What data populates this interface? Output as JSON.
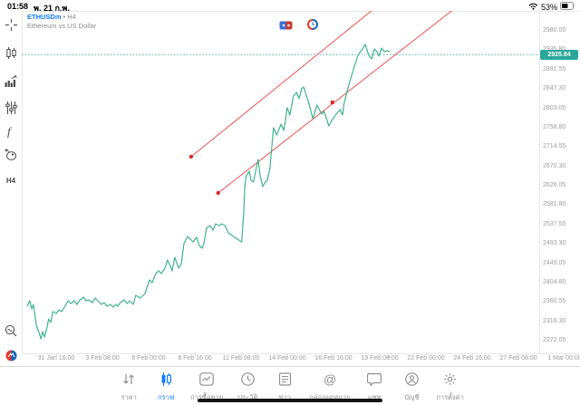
{
  "status_bar": {
    "time": "01:58",
    "date": "พ. 21 ก.พ.",
    "battery_percent": "53%"
  },
  "header": {
    "symbol": "ETHUSDm",
    "timeframe_suffix": " • H4",
    "description": "Ethereum vs US Dollar"
  },
  "sidebar": {
    "timeframe": "H4",
    "icons": [
      "crosshair-icon",
      "candles-icon",
      "indicators-icon",
      "sliders-icon",
      "function-icon",
      "shapes-icon",
      "timeframe-button",
      "zoom-chart-icon",
      "metatrader-logo-icon"
    ]
  },
  "top_icons": [
    "price-flag-icon",
    "session-clock-icon"
  ],
  "colors": {
    "series_line": "#3fb389",
    "trend_red": "#e85050",
    "badge_teal": "#2aa79b",
    "symbol_blue": "#0a7aff",
    "nav_active_blue": "#0a7aff",
    "nav_gray": "#8e8e93",
    "axis_text": "#9b9b9b"
  },
  "chart_data": {
    "type": "line",
    "title": "Ethereum vs US Dollar",
    "symbol": "ETHUSDm",
    "timeframe": "H4",
    "legend": [],
    "grid": false,
    "y_range": [
      2272.05,
      2980.05
    ],
    "y_ticks": [
      "2980.05",
      "2935.80",
      "2891.55",
      "2847.30",
      "2803.05",
      "2758.80",
      "2714.55",
      "2670.30",
      "2626.05",
      "2581.80",
      "2537.55",
      "2493.30",
      "2449.05",
      "2404.80",
      "2360.55",
      "2316.30",
      "2272.05"
    ],
    "x_ticks": [
      "31 Jan 16:00",
      "3 Feb 08:00",
      "6 Feb 00:00",
      "8 Feb 16:00",
      "11 Feb 08:00",
      "14 Feb 00:00",
      "16 Feb 16:00",
      "19 Feb 08:00",
      "22 Feb 00:00",
      "24 Feb 16:00",
      "27 Feb 08:00",
      "1 Mar 00:00"
    ],
    "current_price": 2925.84,
    "current_price_label": "2925.84",
    "series": [
      {
        "name": "ETHUSDm close",
        "color": "#3fb389",
        "points": [
          [
            0.0,
            2350.8
          ],
          [
            0.005,
            2363.2
          ],
          [
            0.009,
            2344.6
          ],
          [
            0.012,
            2354.9
          ],
          [
            0.018,
            2307.3
          ],
          [
            0.027,
            2276.3
          ],
          [
            0.03,
            2292.8
          ],
          [
            0.034,
            2280.4
          ],
          [
            0.039,
            2303.2
          ],
          [
            0.042,
            2321.8
          ],
          [
            0.046,
            2313.5
          ],
          [
            0.05,
            2338.4
          ],
          [
            0.057,
            2334.2
          ],
          [
            0.062,
            2342.5
          ],
          [
            0.067,
            2338.4
          ],
          [
            0.074,
            2350.8
          ],
          [
            0.08,
            2363.2
          ],
          [
            0.085,
            2357.0
          ],
          [
            0.092,
            2363.2
          ],
          [
            0.097,
            2354.9
          ],
          [
            0.103,
            2365.3
          ],
          [
            0.11,
            2371.5
          ],
          [
            0.115,
            2363.2
          ],
          [
            0.12,
            2365.3
          ],
          [
            0.127,
            2359.1
          ],
          [
            0.133,
            2369.4
          ],
          [
            0.138,
            2363.2
          ],
          [
            0.145,
            2354.9
          ],
          [
            0.15,
            2359.1
          ],
          [
            0.156,
            2350.8
          ],
          [
            0.163,
            2354.9
          ],
          [
            0.168,
            2348.7
          ],
          [
            0.173,
            2354.9
          ],
          [
            0.177,
            2350.8
          ],
          [
            0.182,
            2359.1
          ],
          [
            0.189,
            2365.3
          ],
          [
            0.195,
            2357.0
          ],
          [
            0.2,
            2363.2
          ],
          [
            0.207,
            2354.9
          ],
          [
            0.212,
            2375.6
          ],
          [
            0.221,
            2369.4
          ],
          [
            0.23,
            2379.8
          ],
          [
            0.239,
            2410.8
          ],
          [
            0.244,
            2404.6
          ],
          [
            0.251,
            2425.3
          ],
          [
            0.257,
            2431.5
          ],
          [
            0.262,
            2425.3
          ],
          [
            0.269,
            2437.7
          ],
          [
            0.274,
            2456.3
          ],
          [
            0.28,
            2441.9
          ],
          [
            0.283,
            2431.5
          ],
          [
            0.288,
            2462.6
          ],
          [
            0.296,
            2437.7
          ],
          [
            0.301,
            2448.0
          ],
          [
            0.306,
            2493.6
          ],
          [
            0.313,
            2510.1
          ],
          [
            0.319,
            2503.9
          ],
          [
            0.324,
            2497.7
          ],
          [
            0.331,
            2508.0
          ],
          [
            0.336,
            2489.4
          ],
          [
            0.342,
            2483.2
          ],
          [
            0.345,
            2493.6
          ],
          [
            0.35,
            2528.7
          ],
          [
            0.357,
            2534.9
          ],
          [
            0.363,
            2524.6
          ],
          [
            0.368,
            2539.1
          ],
          [
            0.375,
            2534.9
          ],
          [
            0.38,
            2539.1
          ],
          [
            0.386,
            2534.9
          ],
          [
            0.393,
            2518.4
          ],
          [
            0.398,
            2514.2
          ],
          [
            0.403,
            2510.1
          ],
          [
            0.411,
            2503.9
          ],
          [
            0.416,
            2499.7
          ],
          [
            0.419,
            2497.7
          ],
          [
            0.423,
            2566.1
          ],
          [
            0.425,
            2624.1
          ],
          [
            0.428,
            2648.9
          ],
          [
            0.434,
            2659.2
          ],
          [
            0.437,
            2638.5
          ],
          [
            0.442,
            2634.4
          ],
          [
            0.448,
            2669.6
          ],
          [
            0.451,
            2686.1
          ],
          [
            0.455,
            2648.9
          ],
          [
            0.46,
            2624.1
          ],
          [
            0.465,
            2634.4
          ],
          [
            0.469,
            2638.5
          ],
          [
            0.474,
            2665.4
          ],
          [
            0.481,
            2758.6
          ],
          [
            0.487,
            2742.0
          ],
          [
            0.496,
            2766.9
          ],
          [
            0.501,
            2752.4
          ],
          [
            0.508,
            2804.2
          ],
          [
            0.513,
            2787.6
          ],
          [
            0.52,
            2831.1
          ],
          [
            0.526,
            2839.4
          ],
          [
            0.531,
            2824.9
          ],
          [
            0.536,
            2847.7
          ],
          [
            0.54,
            2851.8
          ],
          [
            0.549,
            2818.7
          ],
          [
            0.558,
            2779.3
          ],
          [
            0.566,
            2810.4
          ],
          [
            0.575,
            2789.7
          ],
          [
            0.58,
            2795.9
          ],
          [
            0.589,
            2762.8
          ],
          [
            0.596,
            2777.3
          ],
          [
            0.602,
            2787.6
          ],
          [
            0.611,
            2800.0
          ],
          [
            0.616,
            2787.6
          ],
          [
            0.619,
            2814.5
          ],
          [
            0.628,
            2855.9
          ],
          [
            0.637,
            2891.1
          ],
          [
            0.646,
            2924.2
          ],
          [
            0.651,
            2932.5
          ],
          [
            0.655,
            2938.7
          ],
          [
            0.66,
            2949.0
          ],
          [
            0.667,
            2924.2
          ],
          [
            0.673,
            2915.9
          ],
          [
            0.678,
            2938.7
          ],
          [
            0.683,
            2932.5
          ],
          [
            0.687,
            2922.1
          ],
          [
            0.692,
            2940.8
          ],
          [
            0.697,
            2932.5
          ],
          [
            0.703,
            2934.6
          ],
          [
            0.708,
            2932.5
          ]
        ]
      }
    ],
    "trendlines": [
      {
        "name": "upper-channel-line",
        "color": "#e85050",
        "points": [
          [
            0.32,
            2692.3
          ],
          [
            0.681,
            3033.9
          ]
        ]
      },
      {
        "name": "lower-channel-line",
        "color": "#e85050",
        "points": [
          [
            0.373,
            2609.6
          ],
          [
            0.838,
            3033.9
          ]
        ]
      }
    ],
    "handles": [
      {
        "shape": "circle",
        "at": [
          0.32,
          2692.3
        ]
      },
      {
        "shape": "circle",
        "at": [
          0.373,
          2609.6
        ]
      },
      {
        "shape": "square",
        "at": [
          0.596,
          2816.5
        ]
      }
    ]
  },
  "nav": {
    "items": [
      {
        "label": "ราคา",
        "name": "quotes",
        "active": false
      },
      {
        "label": "กราฟ",
        "name": "chart",
        "active": true
      },
      {
        "label": "การซื้อขาย",
        "name": "trade",
        "active": false
      },
      {
        "label": "ประวัติ",
        "name": "history",
        "active": false
      },
      {
        "label": "ข่าว",
        "name": "news",
        "active": false
      },
      {
        "label": "กล่องจดหมาย",
        "name": "mailbox",
        "active": false
      },
      {
        "label": "แชท",
        "name": "chat",
        "active": false
      },
      {
        "label": "บัญชี",
        "name": "accounts",
        "active": false
      },
      {
        "label": "การตั้งค่า",
        "name": "settings",
        "active": false
      }
    ]
  }
}
